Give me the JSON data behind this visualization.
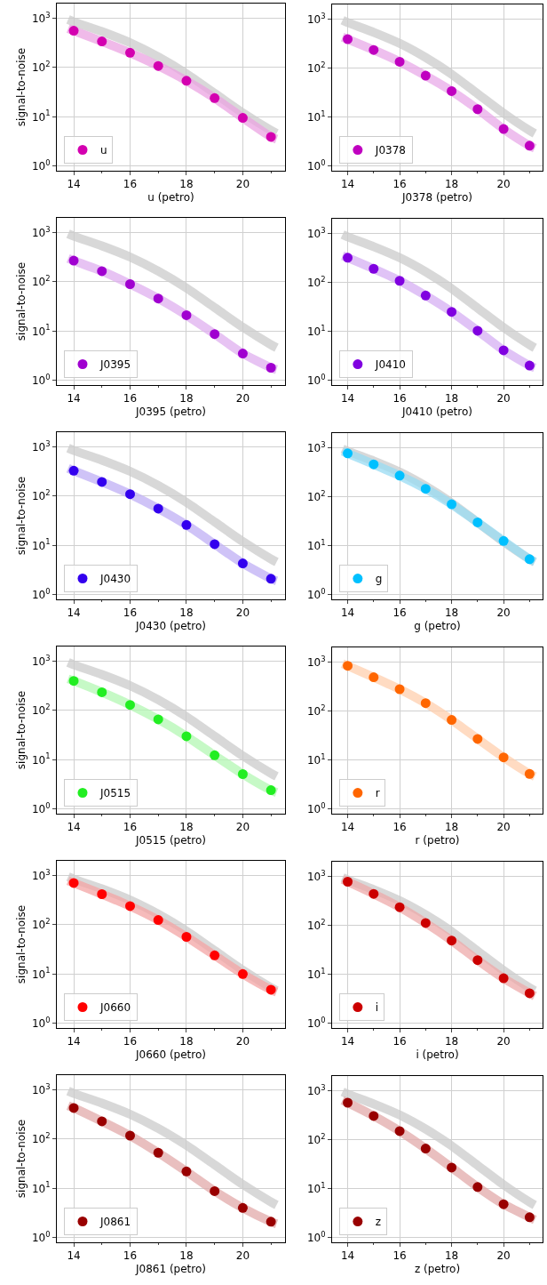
{
  "chart_data": [
    {
      "type": "line",
      "xlabel": "u (petro)",
      "ylabel": "signal-to-noise",
      "xlim": [
        13.4,
        21.5
      ],
      "ylim": [
        0.8,
        2000
      ],
      "xticks": [
        14,
        16,
        18,
        20
      ],
      "yticks": [
        {
          "value": 1,
          "label": "10$^{0}$"
        },
        {
          "value": 10,
          "label": "10$^{1}$"
        },
        {
          "value": 100,
          "label": "10$^{2}$"
        },
        {
          "value": 1000,
          "label": "10$^{3}$"
        }
      ],
      "log": true,
      "grid": true,
      "legend": "bottom left",
      "series": [
        {
          "color": "#cccccc",
          "x": [
            13.8,
            14,
            15,
            16,
            17,
            18,
            19,
            20,
            21,
            21.2
          ],
          "values": [
            950,
            850,
            540,
            320,
            165,
            75,
            30,
            12,
            5.3,
            4.6
          ]
        },
        {
          "color": "#eba4e2",
          "x": [
            13.8,
            14,
            15,
            16,
            17,
            18,
            19,
            20,
            21,
            21.2
          ],
          "values": [
            620,
            560,
            340,
            200,
            108,
            54,
            24,
            9.5,
            3.9,
            3.5
          ]
        },
        {
          "type": "scatter",
          "name": "u",
          "color": "#d400b0",
          "marker": "circle",
          "x": [
            14,
            15,
            16,
            17,
            18,
            19,
            20,
            21
          ],
          "values": [
            560,
            340,
            200,
            108,
            54,
            24,
            9.5,
            3.9
          ]
        }
      ]
    },
    {
      "type": "line",
      "xlabel": "J0378 (petro)",
      "xlim": [
        13.4,
        21.5
      ],
      "ylim": [
        0.8,
        2000
      ],
      "xticks": [
        14,
        16,
        18,
        20
      ],
      "yticks": [
        {
          "value": 1,
          "label": "10$^{0}$"
        },
        {
          "value": 10,
          "label": "10$^{1}$"
        },
        {
          "value": 100,
          "label": "10$^{2}$"
        },
        {
          "value": 1000,
          "label": "10$^{3}$"
        }
      ],
      "log": true,
      "grid": true,
      "legend": "bottom left",
      "series": [
        {
          "color": "#cccccc",
          "x": [
            13.8,
            14,
            15,
            16,
            17,
            18,
            19,
            20,
            21,
            21.2
          ],
          "values": [
            950,
            850,
            540,
            320,
            165,
            75,
            30,
            12,
            5.3,
            4.6
          ]
        },
        {
          "color": "#e9aae9",
          "x": [
            13.8,
            14,
            15,
            16,
            17,
            18,
            19,
            20,
            21,
            21.2
          ],
          "values": [
            430,
            390,
            235,
            135,
            70,
            34,
            14.5,
            5.7,
            2.6,
            2.3
          ]
        },
        {
          "type": "scatter",
          "name": "J0378",
          "color": "#c000c0",
          "marker": "circle",
          "x": [
            14,
            15,
            16,
            17,
            18,
            19,
            20,
            21
          ],
          "values": [
            390,
            235,
            135,
            70,
            34,
            14.5,
            5.7,
            2.6
          ]
        }
      ]
    },
    {
      "type": "line",
      "xlabel": "J0395 (petro)",
      "ylabel": "signal-to-noise",
      "xlim": [
        13.4,
        21.5
      ],
      "ylim": [
        0.8,
        2000
      ],
      "xticks": [
        14,
        16,
        18,
        20
      ],
      "yticks": [
        {
          "value": 1,
          "label": "10$^{0}$"
        },
        {
          "value": 10,
          "label": "10$^{1}$"
        },
        {
          "value": 100,
          "label": "10$^{2}$"
        },
        {
          "value": 1000,
          "label": "10$^{3}$"
        }
      ],
      "log": true,
      "grid": true,
      "legend": "bottom left",
      "series": [
        {
          "color": "#cccccc",
          "x": [
            13.8,
            14,
            15,
            16,
            17,
            18,
            19,
            20,
            21,
            21.2
          ],
          "values": [
            950,
            850,
            540,
            320,
            165,
            75,
            30,
            12,
            5.3,
            4.6
          ]
        },
        {
          "color": "#dfb0ef",
          "x": [
            13.8,
            14,
            15,
            16,
            17,
            18,
            19,
            20,
            21,
            21.2
          ],
          "values": [
            300,
            270,
            165,
            90,
            46,
            21,
            8.7,
            3.5,
            1.8,
            1.65
          ]
        },
        {
          "type": "scatter",
          "name": "J0395",
          "color": "#a000d0",
          "marker": "circle",
          "x": [
            14,
            15,
            16,
            17,
            18,
            19,
            20,
            21
          ],
          "values": [
            270,
            165,
            90,
            46,
            21,
            8.7,
            3.5,
            1.8
          ]
        }
      ]
    },
    {
      "type": "line",
      "xlabel": "J0410 (petro)",
      "xlim": [
        13.4,
        21.5
      ],
      "ylim": [
        0.8,
        2000
      ],
      "xticks": [
        14,
        16,
        18,
        20
      ],
      "yticks": [
        {
          "value": 1,
          "label": "10$^{0}$"
        },
        {
          "value": 10,
          "label": "10$^{1}$"
        },
        {
          "value": 100,
          "label": "10$^{2}$"
        },
        {
          "value": 1000,
          "label": "10$^{3}$"
        }
      ],
      "log": true,
      "grid": true,
      "legend": "bottom left",
      "series": [
        {
          "color": "#cccccc",
          "x": [
            13.8,
            14,
            15,
            16,
            17,
            18,
            19,
            20,
            21,
            21.2
          ],
          "values": [
            950,
            850,
            540,
            320,
            165,
            75,
            30,
            12,
            5.3,
            4.6
          ]
        },
        {
          "color": "#d6b0f3",
          "x": [
            13.8,
            14,
            15,
            16,
            17,
            18,
            19,
            20,
            21,
            21.2
          ],
          "values": [
            350,
            320,
            190,
            108,
            54,
            25,
            10.3,
            4.1,
            2.0,
            1.8
          ]
        },
        {
          "type": "scatter",
          "name": "J0410",
          "color": "#8000e0",
          "marker": "circle",
          "x": [
            14,
            15,
            16,
            17,
            18,
            19,
            20,
            21
          ],
          "values": [
            320,
            190,
            108,
            54,
            25,
            10.3,
            4.1,
            2.0
          ]
        }
      ]
    },
    {
      "type": "line",
      "xlabel": "J0430 (petro)",
      "ylabel": "signal-to-noise",
      "xlim": [
        13.4,
        21.5
      ],
      "ylim": [
        0.8,
        2000
      ],
      "xticks": [
        14,
        16,
        18,
        20
      ],
      "yticks": [
        {
          "value": 1,
          "label": "10$^{0}$"
        },
        {
          "value": 10,
          "label": "10$^{1}$"
        },
        {
          "value": 100,
          "label": "10$^{2}$"
        },
        {
          "value": 1000,
          "label": "10$^{3}$"
        }
      ],
      "log": true,
      "grid": true,
      "legend": "bottom left",
      "series": [
        {
          "color": "#cccccc",
          "x": [
            13.8,
            14,
            15,
            16,
            17,
            18,
            19,
            20,
            21,
            21.2
          ],
          "values": [
            950,
            850,
            540,
            320,
            165,
            75,
            30,
            12,
            5.3,
            4.6
          ]
        },
        {
          "color": "#c0b0f5",
          "x": [
            13.8,
            14,
            15,
            16,
            17,
            18,
            19,
            20,
            21,
            21.2
          ],
          "values": [
            370,
            330,
            195,
            110,
            56,
            26,
            10.6,
            4.3,
            2.1,
            1.9
          ]
        },
        {
          "type": "scatter",
          "name": "J0430",
          "color": "#3300ee",
          "marker": "circle",
          "x": [
            14,
            15,
            16,
            17,
            18,
            19,
            20,
            21
          ],
          "values": [
            330,
            195,
            110,
            56,
            26,
            10.6,
            4.3,
            2.1
          ]
        }
      ]
    },
    {
      "type": "line",
      "xlabel": "g (petro)",
      "xlim": [
        13.4,
        21.5
      ],
      "ylim": [
        0.8,
        2000
      ],
      "xticks": [
        14,
        16,
        18,
        20
      ],
      "yticks": [
        {
          "value": 1,
          "label": "10$^{0}$"
        },
        {
          "value": 10,
          "label": "10$^{1}$"
        },
        {
          "value": 100,
          "label": "10$^{2}$"
        },
        {
          "value": 1000,
          "label": "10$^{3}$"
        }
      ],
      "log": true,
      "grid": true,
      "legend": "bottom left",
      "series": [
        {
          "color": "#cccccc",
          "x": [
            13.8,
            14,
            15,
            16,
            17,
            18,
            19,
            20,
            21,
            21.2
          ],
          "values": [
            950,
            850,
            540,
            320,
            165,
            75,
            30,
            12,
            5.3,
            4.6
          ]
        },
        {
          "color": "#99dcf3",
          "x": [
            13.8,
            14,
            15,
            16,
            17,
            18,
            19,
            20,
            21,
            21.2
          ],
          "values": [
            850,
            770,
            460,
            270,
            145,
            70,
            30,
            12.5,
            5.3,
            4.7
          ]
        },
        {
          "type": "scatter",
          "name": "g",
          "color": "#00c0ff",
          "marker": "circle",
          "x": [
            14,
            15,
            16,
            17,
            18,
            19,
            20,
            21
          ],
          "values": [
            770,
            460,
            270,
            145,
            70,
            30,
            12.5,
            5.3
          ]
        }
      ]
    },
    {
      "type": "line",
      "xlabel": "J0515 (petro)",
      "ylabel": "signal-to-noise",
      "xlim": [
        13.4,
        21.5
      ],
      "ylim": [
        0.8,
        2000
      ],
      "xticks": [
        14,
        16,
        18,
        20
      ],
      "yticks": [
        {
          "value": 1,
          "label": "10$^{0}$"
        },
        {
          "value": 10,
          "label": "10$^{1}$"
        },
        {
          "value": 100,
          "label": "10$^{2}$"
        },
        {
          "value": 1000,
          "label": "10$^{3}$"
        }
      ],
      "log": true,
      "grid": true,
      "legend": "bottom left",
      "series": [
        {
          "color": "#cccccc",
          "x": [
            13.8,
            14,
            15,
            16,
            17,
            18,
            19,
            20,
            21,
            21.2
          ],
          "values": [
            950,
            850,
            540,
            320,
            165,
            75,
            30,
            12,
            5.3,
            4.6
          ]
        },
        {
          "color": "#b4f7b4",
          "x": [
            13.8,
            14,
            15,
            16,
            17,
            18,
            19,
            20,
            21,
            21.2
          ],
          "values": [
            440,
            400,
            235,
            130,
            66,
            30,
            12.3,
            5.1,
            2.4,
            2.15
          ]
        },
        {
          "type": "scatter",
          "name": "J0515",
          "color": "#22ee22",
          "marker": "circle",
          "x": [
            14,
            15,
            16,
            17,
            18,
            19,
            20,
            21
          ],
          "values": [
            400,
            235,
            130,
            66,
            30,
            12.3,
            5.1,
            2.4
          ]
        }
      ]
    },
    {
      "type": "line",
      "xlabel": "r (petro)",
      "xlim": [
        13.4,
        21.5
      ],
      "ylim": [
        0.8,
        2000
      ],
      "xticks": [
        14,
        16,
        18,
        20
      ],
      "yticks": [
        {
          "value": 1,
          "label": "10$^{0}$"
        },
        {
          "value": 10,
          "label": "10$^{1}$"
        },
        {
          "value": 100,
          "label": "10$^{2}$"
        },
        {
          "value": 1000,
          "label": "10$^{3}$"
        }
      ],
      "log": true,
      "grid": true,
      "legend": "bottom left",
      "series": [
        {
          "color": "#ffcfae",
          "x": [
            13.8,
            14,
            15,
            16,
            17,
            18,
            19,
            20,
            21,
            21.2
          ],
          "values": [
            930,
            840,
            490,
            280,
            145,
            66,
            27,
            11.3,
            5.2,
            4.6
          ]
        },
        {
          "type": "scatter",
          "name": "r",
          "color": "#ff6600",
          "marker": "circle",
          "x": [
            14,
            15,
            16,
            17,
            18,
            19,
            20,
            21
          ],
          "values": [
            840,
            490,
            280,
            145,
            66,
            27,
            11.3,
            5.2
          ]
        }
      ]
    },
    {
      "type": "line",
      "xlabel": "J0660 (petro)",
      "ylabel": "signal-to-noise",
      "xlim": [
        13.4,
        21.5
      ],
      "ylim": [
        0.8,
        2000
      ],
      "xticks": [
        14,
        16,
        18,
        20
      ],
      "yticks": [
        {
          "value": 1,
          "label": "10$^{0}$"
        },
        {
          "value": 10,
          "label": "10$^{1}$"
        },
        {
          "value": 100,
          "label": "10$^{2}$"
        },
        {
          "value": 1000,
          "label": "10$^{3}$"
        }
      ],
      "log": true,
      "grid": true,
      "legend": "bottom left",
      "series": [
        {
          "color": "#cccccc",
          "x": [
            13.8,
            14,
            15,
            16,
            17,
            18,
            19,
            20,
            21,
            21.2
          ],
          "values": [
            950,
            850,
            540,
            320,
            165,
            75,
            30,
            12,
            5.3,
            4.6
          ]
        },
        {
          "color": "#f4a5a5",
          "x": [
            13.8,
            14,
            15,
            16,
            17,
            18,
            19,
            20,
            21,
            21.2
          ],
          "values": [
            790,
            710,
            420,
            240,
            125,
            57,
            24,
            10,
            4.8,
            4.3
          ]
        },
        {
          "type": "scatter",
          "name": "J0660",
          "color": "#ff0000",
          "marker": "circle",
          "x": [
            14,
            15,
            16,
            17,
            18,
            19,
            20,
            21
          ],
          "values": [
            710,
            420,
            240,
            125,
            57,
            24,
            10,
            4.8
          ]
        }
      ]
    },
    {
      "type": "line",
      "xlabel": "i (petro)",
      "xlim": [
        13.4,
        21.5
      ],
      "ylim": [
        0.8,
        2000
      ],
      "xticks": [
        14,
        16,
        18,
        20
      ],
      "yticks": [
        {
          "value": 1,
          "label": "10$^{0}$"
        },
        {
          "value": 10,
          "label": "10$^{1}$"
        },
        {
          "value": 100,
          "label": "10$^{2}$"
        },
        {
          "value": 1000,
          "label": "10$^{3}$"
        }
      ],
      "log": true,
      "grid": true,
      "legend": "bottom left",
      "series": [
        {
          "color": "#cccccc",
          "x": [
            13.8,
            14,
            15,
            16,
            17,
            18,
            19,
            20,
            21,
            21.2
          ],
          "values": [
            950,
            850,
            540,
            320,
            165,
            75,
            30,
            12,
            5.3,
            4.6
          ]
        },
        {
          "color": "#eeaaaa",
          "x": [
            13.8,
            14,
            15,
            16,
            17,
            18,
            19,
            20,
            21,
            21.2
          ],
          "values": [
            870,
            780,
            440,
            235,
            112,
            49,
            19.5,
            8.3,
            4.1,
            3.6
          ]
        },
        {
          "type": "scatter",
          "name": "i",
          "color": "#cc0000",
          "marker": "circle",
          "x": [
            14,
            15,
            16,
            17,
            18,
            19,
            20,
            21
          ],
          "values": [
            780,
            440,
            235,
            112,
            49,
            19.5,
            8.3,
            4.1
          ]
        }
      ]
    },
    {
      "type": "line",
      "xlabel": "J0861 (petro)",
      "ylabel": "signal-to-noise",
      "xlim": [
        13.4,
        21.5
      ],
      "ylim": [
        0.8,
        2000
      ],
      "xticks": [
        14,
        16,
        18,
        20
      ],
      "yticks": [
        {
          "value": 1,
          "label": "10$^{0}$"
        },
        {
          "value": 10,
          "label": "10$^{1}$"
        },
        {
          "value": 100,
          "label": "10$^{2}$"
        },
        {
          "value": 1000,
          "label": "10$^{3}$"
        }
      ],
      "log": true,
      "grid": true,
      "legend": "bottom left",
      "series": [
        {
          "color": "#cccccc",
          "x": [
            13.8,
            14,
            15,
            16,
            17,
            18,
            19,
            20,
            21,
            21.2
          ],
          "values": [
            950,
            850,
            540,
            320,
            165,
            75,
            30,
            12,
            5.3,
            4.6
          ]
        },
        {
          "color": "#e2aaaa",
          "x": [
            13.8,
            14,
            15,
            16,
            17,
            18,
            19,
            20,
            21,
            21.2
          ],
          "values": [
            480,
            430,
            230,
            118,
            53,
            22,
            8.8,
            4.0,
            2.1,
            1.9
          ]
        },
        {
          "type": "scatter",
          "name": "J0861",
          "color": "#990000",
          "marker": "circle",
          "x": [
            14,
            15,
            16,
            17,
            18,
            19,
            20,
            21
          ],
          "values": [
            430,
            230,
            118,
            53,
            22,
            8.8,
            4.0,
            2.1
          ]
        }
      ]
    },
    {
      "type": "line",
      "xlabel": "z (petro)",
      "xlim": [
        13.4,
        21.5
      ],
      "ylim": [
        0.8,
        2000
      ],
      "xticks": [
        14,
        16,
        18,
        20
      ],
      "yticks": [
        {
          "value": 1,
          "label": "10$^{0}$"
        },
        {
          "value": 10,
          "label": "10$^{1}$"
        },
        {
          "value": 100,
          "label": "10$^{2}$"
        },
        {
          "value": 1000,
          "label": "10$^{3}$"
        }
      ],
      "log": true,
      "grid": true,
      "legend": "bottom left",
      "series": [
        {
          "color": "#cccccc",
          "x": [
            13.8,
            14,
            15,
            16,
            17,
            18,
            19,
            20,
            21,
            21.2
          ],
          "values": [
            950,
            850,
            540,
            320,
            165,
            75,
            30,
            12,
            5.3,
            4.6
          ]
        },
        {
          "color": "#e2aaaa",
          "x": [
            13.8,
            14,
            15,
            16,
            17,
            18,
            19,
            20,
            21,
            21.2
          ],
          "values": [
            640,
            570,
            305,
            150,
            66,
            27,
            10.8,
            4.8,
            2.6,
            2.3
          ]
        },
        {
          "type": "scatter",
          "name": "z",
          "color": "#990000",
          "marker": "circle",
          "x": [
            14,
            15,
            16,
            17,
            18,
            19,
            20,
            21
          ],
          "values": [
            570,
            305,
            150,
            66,
            27,
            10.8,
            4.8,
            2.6
          ]
        }
      ]
    }
  ]
}
